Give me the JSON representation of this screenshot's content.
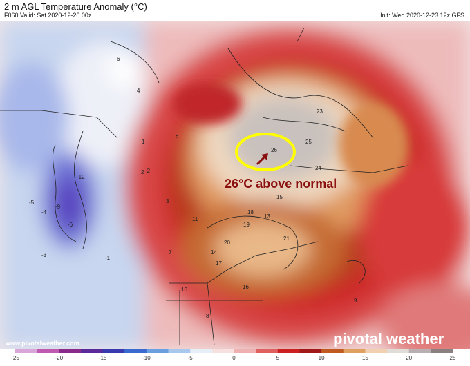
{
  "header": {
    "title": "2 m AGL Temperature Anomaly (°C)",
    "valid": "F060 Valid: Sat 2020-12-26 00z",
    "init": "Init: Wed 2020-12-23 12z GFS"
  },
  "map": {
    "annotation": "26°C above normal",
    "website": "www.pivotalweather.com",
    "brand": "pivotal weather",
    "values": [
      "-12",
      "-9",
      "-6",
      "-5",
      "-4",
      "-3",
      "-2",
      "-1",
      "1",
      "2",
      "3",
      "4",
      "5",
      "6",
      "7",
      "8",
      "9",
      "10",
      "11",
      "13",
      "14",
      "15",
      "16",
      "17",
      "18",
      "19",
      "20",
      "21",
      "23",
      "24",
      "25",
      "26"
    ],
    "colors": {
      "cold_deep": "#5a4fc8",
      "cold": "#8fa5dd",
      "cool": "#c8d6ef",
      "neutral": "#f3eded",
      "warm_light": "#eec0c0",
      "warm": "#d83a3a",
      "hot": "#c06020",
      "hotter": "#e6a66a",
      "extreme": "#c9c1bd",
      "circle": "#ffff00",
      "arrow": "#8a1010"
    }
  },
  "colorbar": {
    "ticks": [
      "-25",
      "-20",
      "-15",
      "-10",
      "-5",
      "0",
      "5",
      "10",
      "15",
      "20",
      "25"
    ],
    "colors": [
      "#d8a6d8",
      "#c05ab0",
      "#8a2a8a",
      "#5a2a9a",
      "#3a3ab0",
      "#3a6ad0",
      "#6aa0e0",
      "#a8c8ee",
      "#e6eef8",
      "#f6e0e0",
      "#eeb0b0",
      "#e06060",
      "#cc2020",
      "#a01818",
      "#c05a20",
      "#e0a060",
      "#f0d0b0",
      "#e0dcd8",
      "#b8b0b0",
      "#8a8080"
    ]
  }
}
